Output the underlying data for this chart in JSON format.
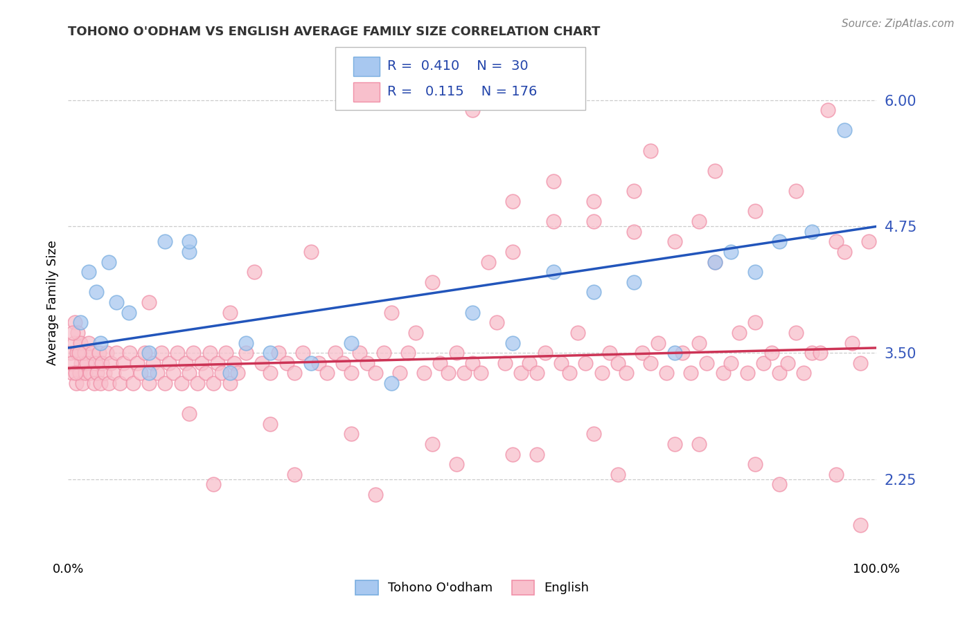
{
  "title": "TOHONO O'ODHAM VS ENGLISH AVERAGE FAMILY SIZE CORRELATION CHART",
  "source": "Source: ZipAtlas.com",
  "ylabel": "Average Family Size",
  "yticks": [
    2.25,
    3.5,
    4.75,
    6.0
  ],
  "xlim": [
    0.0,
    100.0
  ],
  "ylim": [
    1.5,
    6.5
  ],
  "blue_color": "#A8C8F0",
  "blue_edge_color": "#7AAEE0",
  "pink_color": "#F8C0CC",
  "pink_edge_color": "#F090A8",
  "blue_line_color": "#2255BB",
  "pink_line_color": "#CC3355",
  "blue_R": 0.41,
  "blue_N": 30,
  "pink_R": 0.115,
  "pink_N": 176,
  "blue_line_x0": 0,
  "blue_line_x1": 100,
  "blue_line_y0": 3.55,
  "blue_line_y1": 4.75,
  "pink_line_x0": 0,
  "pink_line_x1": 100,
  "pink_line_y0": 3.35,
  "pink_line_y1": 3.55,
  "blue_scatter": [
    [
      1.5,
      3.8
    ],
    [
      2.5,
      4.3
    ],
    [
      3.5,
      4.1
    ],
    [
      4.0,
      3.6
    ],
    [
      5.0,
      4.4
    ],
    [
      6.0,
      4.0
    ],
    [
      7.5,
      3.9
    ],
    [
      10.0,
      3.3
    ],
    [
      10.0,
      3.5
    ],
    [
      12.0,
      4.6
    ],
    [
      15.0,
      4.5
    ],
    [
      15.0,
      4.6
    ],
    [
      20.0,
      3.3
    ],
    [
      22.0,
      3.6
    ],
    [
      25.0,
      3.5
    ],
    [
      30.0,
      3.4
    ],
    [
      35.0,
      3.6
    ],
    [
      40.0,
      3.2
    ],
    [
      50.0,
      3.9
    ],
    [
      55.0,
      3.6
    ],
    [
      60.0,
      4.3
    ],
    [
      65.0,
      4.1
    ],
    [
      70.0,
      4.2
    ],
    [
      75.0,
      3.5
    ],
    [
      80.0,
      4.4
    ],
    [
      82.0,
      4.5
    ],
    [
      85.0,
      4.3
    ],
    [
      88.0,
      4.6
    ],
    [
      92.0,
      4.7
    ],
    [
      96.0,
      5.7
    ]
  ],
  "pink_scatter": [
    [
      0.3,
      3.5
    ],
    [
      0.5,
      3.3
    ],
    [
      0.7,
      3.6
    ],
    [
      0.8,
      3.8
    ],
    [
      1.0,
      3.2
    ],
    [
      1.1,
      3.5
    ],
    [
      1.2,
      3.7
    ],
    [
      1.4,
      3.3
    ],
    [
      1.5,
      3.6
    ],
    [
      1.6,
      3.4
    ],
    [
      1.8,
      3.2
    ],
    [
      2.0,
      3.5
    ],
    [
      2.1,
      3.3
    ],
    [
      2.3,
      3.4
    ],
    [
      2.5,
      3.6
    ],
    [
      2.7,
      3.3
    ],
    [
      3.0,
      3.5
    ],
    [
      3.2,
      3.2
    ],
    [
      3.4,
      3.4
    ],
    [
      3.6,
      3.3
    ],
    [
      3.8,
      3.5
    ],
    [
      4.0,
      3.2
    ],
    [
      4.2,
      3.4
    ],
    [
      4.5,
      3.3
    ],
    [
      4.8,
      3.5
    ],
    [
      5.0,
      3.2
    ],
    [
      5.3,
      3.4
    ],
    [
      5.6,
      3.3
    ],
    [
      6.0,
      3.5
    ],
    [
      6.4,
      3.2
    ],
    [
      6.8,
      3.4
    ],
    [
      7.2,
      3.3
    ],
    [
      7.6,
      3.5
    ],
    [
      8.0,
      3.2
    ],
    [
      8.5,
      3.4
    ],
    [
      9.0,
      3.3
    ],
    [
      9.5,
      3.5
    ],
    [
      10.0,
      3.2
    ],
    [
      10.5,
      3.4
    ],
    [
      11.0,
      3.3
    ],
    [
      11.5,
      3.5
    ],
    [
      12.0,
      3.2
    ],
    [
      12.5,
      3.4
    ],
    [
      13.0,
      3.3
    ],
    [
      13.5,
      3.5
    ],
    [
      14.0,
      3.2
    ],
    [
      14.5,
      3.4
    ],
    [
      15.0,
      3.3
    ],
    [
      15.5,
      3.5
    ],
    [
      16.0,
      3.2
    ],
    [
      16.5,
      3.4
    ],
    [
      17.0,
      3.3
    ],
    [
      17.5,
      3.5
    ],
    [
      18.0,
      3.2
    ],
    [
      18.5,
      3.4
    ],
    [
      19.0,
      3.3
    ],
    [
      19.5,
      3.5
    ],
    [
      20.0,
      3.2
    ],
    [
      20.5,
      3.4
    ],
    [
      21.0,
      3.3
    ],
    [
      22.0,
      3.5
    ],
    [
      23.0,
      4.3
    ],
    [
      24.0,
      3.4
    ],
    [
      25.0,
      3.3
    ],
    [
      26.0,
      3.5
    ],
    [
      27.0,
      3.4
    ],
    [
      28.0,
      3.3
    ],
    [
      29.0,
      3.5
    ],
    [
      30.0,
      4.5
    ],
    [
      31.0,
      3.4
    ],
    [
      32.0,
      3.3
    ],
    [
      33.0,
      3.5
    ],
    [
      34.0,
      3.4
    ],
    [
      35.0,
      3.3
    ],
    [
      36.0,
      3.5
    ],
    [
      37.0,
      3.4
    ],
    [
      38.0,
      3.3
    ],
    [
      39.0,
      3.5
    ],
    [
      40.0,
      3.9
    ],
    [
      41.0,
      3.3
    ],
    [
      42.0,
      3.5
    ],
    [
      43.0,
      3.7
    ],
    [
      44.0,
      3.3
    ],
    [
      45.0,
      4.2
    ],
    [
      46.0,
      3.4
    ],
    [
      47.0,
      3.3
    ],
    [
      48.0,
      3.5
    ],
    [
      49.0,
      3.3
    ],
    [
      50.0,
      3.4
    ],
    [
      51.0,
      3.3
    ],
    [
      52.0,
      4.4
    ],
    [
      53.0,
      3.8
    ],
    [
      54.0,
      3.4
    ],
    [
      55.0,
      4.5
    ],
    [
      56.0,
      3.3
    ],
    [
      57.0,
      3.4
    ],
    [
      58.0,
      3.3
    ],
    [
      59.0,
      3.5
    ],
    [
      60.0,
      4.8
    ],
    [
      61.0,
      3.4
    ],
    [
      62.0,
      3.3
    ],
    [
      63.0,
      3.7
    ],
    [
      64.0,
      3.4
    ],
    [
      65.0,
      5.0
    ],
    [
      66.0,
      3.3
    ],
    [
      67.0,
      3.5
    ],
    [
      68.0,
      3.4
    ],
    [
      69.0,
      3.3
    ],
    [
      70.0,
      5.1
    ],
    [
      71.0,
      3.5
    ],
    [
      72.0,
      3.4
    ],
    [
      73.0,
      3.6
    ],
    [
      74.0,
      3.3
    ],
    [
      75.0,
      4.6
    ],
    [
      76.0,
      3.5
    ],
    [
      77.0,
      3.3
    ],
    [
      78.0,
      3.6
    ],
    [
      79.0,
      3.4
    ],
    [
      80.0,
      4.4
    ],
    [
      81.0,
      3.3
    ],
    [
      82.0,
      3.4
    ],
    [
      83.0,
      3.7
    ],
    [
      84.0,
      3.3
    ],
    [
      85.0,
      3.8
    ],
    [
      86.0,
      3.4
    ],
    [
      87.0,
      3.5
    ],
    [
      88.0,
      3.3
    ],
    [
      89.0,
      3.4
    ],
    [
      90.0,
      3.7
    ],
    [
      91.0,
      3.3
    ],
    [
      92.0,
      3.5
    ],
    [
      93.0,
      3.5
    ],
    [
      94.0,
      5.9
    ],
    [
      95.0,
      4.6
    ],
    [
      96.0,
      4.5
    ],
    [
      97.0,
      3.6
    ],
    [
      98.0,
      3.4
    ],
    [
      99.0,
      4.6
    ],
    [
      55.0,
      5.0
    ],
    [
      60.0,
      5.2
    ],
    [
      65.0,
      4.8
    ],
    [
      70.0,
      4.7
    ],
    [
      72.0,
      5.5
    ],
    [
      75.0,
      2.6
    ],
    [
      78.0,
      4.8
    ],
    [
      80.0,
      5.3
    ],
    [
      85.0,
      4.9
    ],
    [
      90.0,
      5.1
    ],
    [
      15.0,
      2.9
    ],
    [
      20.0,
      3.9
    ],
    [
      25.0,
      2.8
    ],
    [
      35.0,
      2.7
    ],
    [
      45.0,
      2.6
    ],
    [
      55.0,
      2.5
    ],
    [
      65.0,
      2.7
    ],
    [
      10.0,
      4.0
    ],
    [
      18.0,
      2.2
    ],
    [
      28.0,
      2.3
    ],
    [
      38.0,
      2.1
    ],
    [
      48.0,
      2.4
    ],
    [
      58.0,
      2.5
    ],
    [
      68.0,
      2.3
    ],
    [
      78.0,
      2.6
    ],
    [
      88.0,
      2.2
    ],
    [
      98.0,
      1.8
    ],
    [
      85.0,
      2.4
    ],
    [
      95.0,
      2.3
    ],
    [
      50.0,
      5.9
    ],
    [
      0.4,
      3.4
    ],
    [
      0.6,
      3.7
    ],
    [
      0.9,
      3.3
    ],
    [
      1.3,
      3.5
    ]
  ]
}
